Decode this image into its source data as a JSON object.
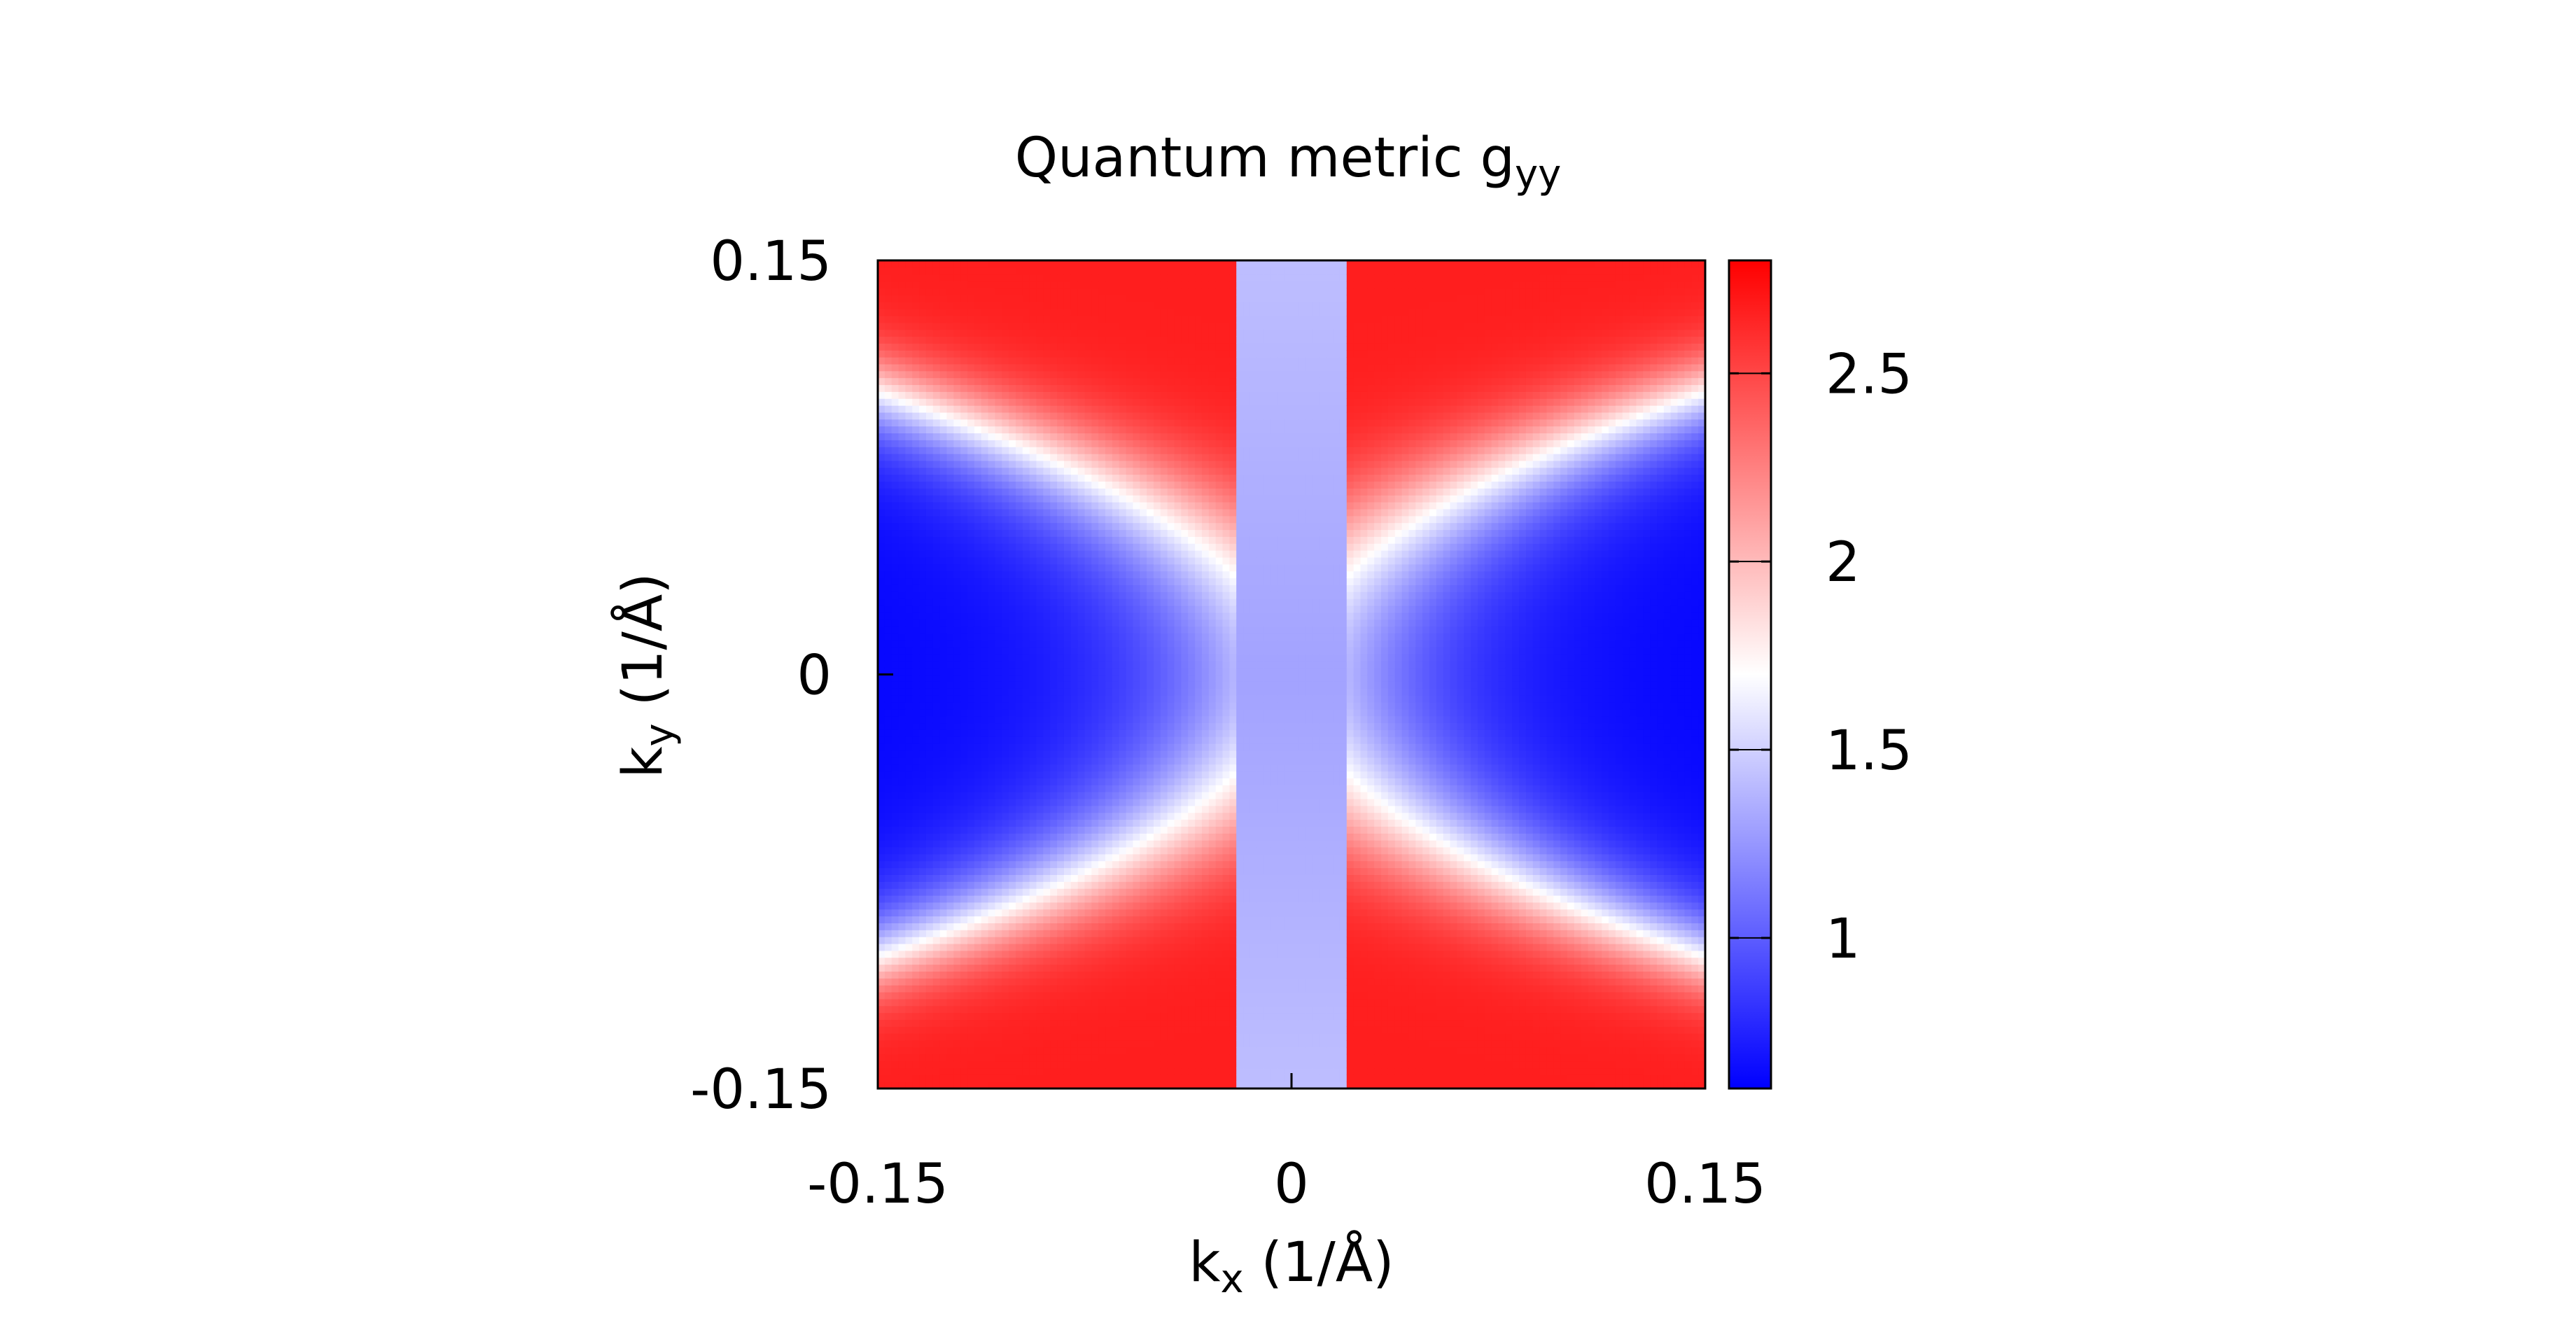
{
  "chart_data": {
    "type": "heatmap",
    "title": "Quantum metric g",
    "title_subscript": "yy",
    "xlabel": "k",
    "xlabel_subscript": "x",
    "xlabel_unit": " (1/Å)",
    "ylabel": "k",
    "ylabel_subscript": "y",
    "ylabel_unit": " (1/Å)",
    "xlim": [
      -0.15,
      0.15
    ],
    "ylim": [
      -0.15,
      0.15
    ],
    "x_ticks": [
      {
        "value": -0.15,
        "label": "-0.15"
      },
      {
        "value": 0,
        "label": "0"
      },
      {
        "value": 0.15,
        "label": "0.15"
      }
    ],
    "y_ticks": [
      {
        "value": -0.15,
        "label": "-0.15"
      },
      {
        "value": 0,
        "label": "0"
      },
      {
        "value": 0.15,
        "label": "0.15"
      }
    ],
    "colorbar": {
      "range": [
        0.6,
        2.8
      ],
      "ticks": [
        {
          "value": 1,
          "label": "1"
        },
        {
          "value": 1.5,
          "label": "1.5"
        },
        {
          "value": 2,
          "label": "2"
        },
        {
          "value": 2.5,
          "label": "2.5"
        }
      ],
      "colors": {
        "low": "#0000ff",
        "mid": "#ffffff",
        "high": "#ff0000"
      },
      "midpoint": 1.7
    },
    "grid": false,
    "description_values": {
      "center_value": 1.3,
      "center_strip_halfwidth": 0.02,
      "corner_max_value": 2.7,
      "edge_min_value": 0.6
    }
  }
}
